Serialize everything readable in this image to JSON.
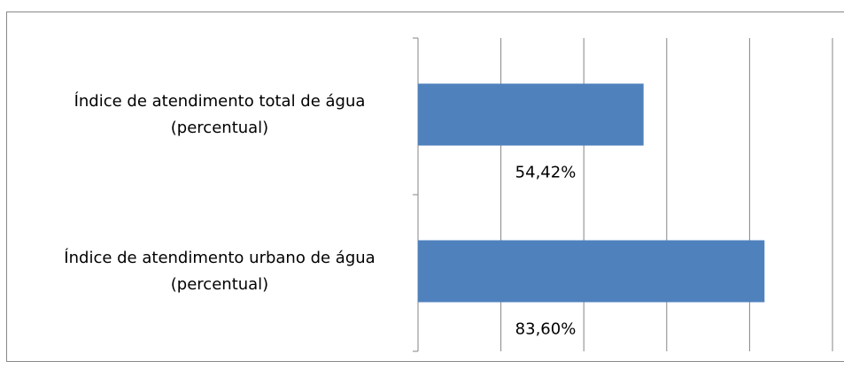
{
  "chart_data": {
    "type": "bar",
    "orientation": "horizontal",
    "categories": [
      "Índice de atendimento total de água (percentual)",
      "Índice de atendimento urbano de água (percentual)"
    ],
    "values": [
      54.42,
      83.6
    ],
    "value_labels": [
      "54,42%",
      "83,60%"
    ],
    "color": "#4f81bd",
    "xlim": [
      0,
      100
    ],
    "xticks": [
      0,
      20,
      40,
      60,
      80,
      100
    ],
    "grid": true
  }
}
